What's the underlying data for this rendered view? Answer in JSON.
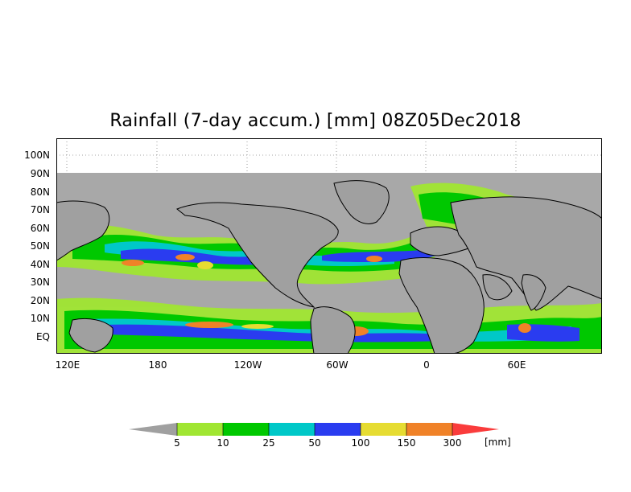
{
  "title": "Rainfall (7-day accum.) [mm] 08Z05Dec2018",
  "map": {
    "y_ticks": [
      "100N",
      "90N",
      "80N",
      "70N",
      "60N",
      "50N",
      "40N",
      "30N",
      "20N",
      "10N",
      "EQ"
    ],
    "x_ticks": [
      "120E",
      "180",
      "120W",
      "60W",
      "0",
      "60E"
    ]
  },
  "legend": {
    "labels": [
      "5",
      "10",
      "25",
      "50",
      "100",
      "150",
      "300"
    ],
    "unit": "[mm]",
    "colors": {
      "below": "#a0a0a0",
      "c1": "#a0e632",
      "c2": "#00c800",
      "c3": "#00c8c8",
      "c4": "#2a3cf0",
      "c5": "#e6dc32",
      "c6": "#f08228",
      "above": "#fa3c3c"
    }
  },
  "colors": {
    "land": "#a0a0a0",
    "ocean_dry": "#a8a8a8",
    "coast": "#000000"
  }
}
